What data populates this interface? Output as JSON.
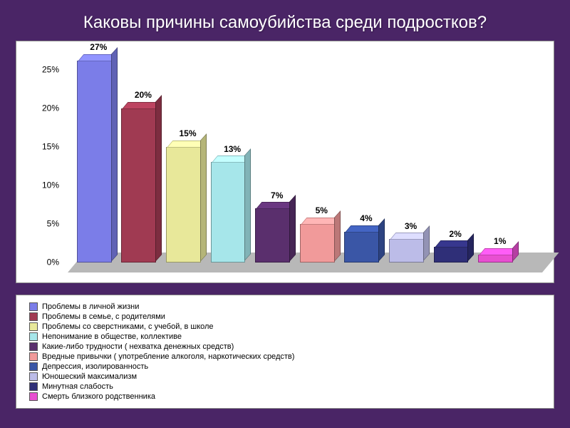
{
  "page": {
    "background_color": "#4a2566",
    "title": "Каковы причины самоубийства среди подростков?",
    "title_color": "#ffffff",
    "title_fontsize": 24
  },
  "chart": {
    "type": "bar-3d",
    "card_bg": "#ffffff",
    "floor_color": "#b8b8b8",
    "ylim": [
      0,
      25
    ],
    "yticks": [
      {
        "v": 0,
        "label": "0%"
      },
      {
        "v": 5,
        "label": "5%"
      },
      {
        "v": 10,
        "label": "10%"
      },
      {
        "v": 15,
        "label": "15%"
      },
      {
        "v": 20,
        "label": "20%"
      },
      {
        "v": 25,
        "label": "25%"
      }
    ],
    "ytick_fontsize": 12,
    "barlabel_fontsize": 12,
    "legend_fontsize": 11,
    "bar_width_ratio": 0.78,
    "series": [
      {
        "value": 27,
        "label": "27%",
        "color": "#7b7de8",
        "legend": "Проблемы в личной жизни"
      },
      {
        "value": 20,
        "label": "20%",
        "color": "#a03a52",
        "legend": "Проблемы в семье, с родителями"
      },
      {
        "value": 15,
        "label": "15%",
        "color": "#e8e89a",
        "legend": "Проблемы со сверстниками, с учебой, в школе"
      },
      {
        "value": 13,
        "label": "13%",
        "color": "#a6e6ea",
        "legend": "Непонимание в обществе, коллективе"
      },
      {
        "value": 7,
        "label": "7%",
        "color": "#5a2f6d",
        "legend": "Какие-либо трудности ( нехватка денежных средств)"
      },
      {
        "value": 5,
        "label": "5%",
        "color": "#f19a9a",
        "legend": "Вредные привычки ( употребление алкоголя, наркотических средств)"
      },
      {
        "value": 4,
        "label": "4%",
        "color": "#3a56a6",
        "legend": "Депрессия, изолированность"
      },
      {
        "value": 3,
        "label": "3%",
        "color": "#bcbce8",
        "legend": "Юношеский максимализм"
      },
      {
        "value": 2,
        "label": "2%",
        "color": "#2f2f78",
        "legend": "Минутная слабость"
      },
      {
        "value": 1,
        "label": "1%",
        "color": "#e84fd1",
        "legend": "Смерть близкого родственника"
      }
    ]
  }
}
